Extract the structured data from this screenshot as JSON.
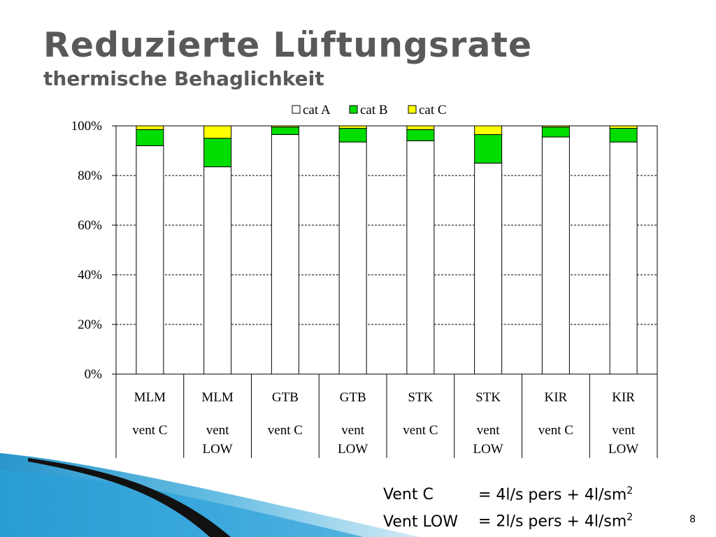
{
  "slide": {
    "title": "Reduzierte Lüftungsrate",
    "subtitle": "thermische Behaglichkeit",
    "page_number": "8"
  },
  "notes": [
    {
      "label": "Vent C",
      "formula": "= 4l/s pers + 4l/sm",
      "sup": "2"
    },
    {
      "label": "Vent LOW",
      "formula": "= 2l/s pers + 4l/sm",
      "sup": "2"
    }
  ],
  "colors": {
    "cat_a": "#ffffff",
    "cat_b": "#00dd00",
    "cat_c": "#ffff00",
    "grid": "#000000",
    "text": "#000000",
    "title": "#595959"
  },
  "chart_data": {
    "type": "bar",
    "stacked": true,
    "normalized": true,
    "categories": [
      [
        "MLM",
        "vent C"
      ],
      [
        "MLM",
        "vent",
        "LOW"
      ],
      [
        "GTB",
        "vent C"
      ],
      [
        "GTB",
        "vent",
        "LOW"
      ],
      [
        "STK",
        "vent C"
      ],
      [
        "STK",
        "vent",
        "LOW"
      ],
      [
        "KIR",
        "vent C"
      ],
      [
        "KIR",
        "vent",
        "LOW"
      ]
    ],
    "series": [
      {
        "name": "cat A",
        "values": [
          92,
          83.5,
          96.5,
          93.5,
          94,
          85,
          95.5,
          93.5
        ]
      },
      {
        "name": "cat B",
        "values": [
          6.5,
          11.5,
          3,
          5.5,
          4.5,
          11.5,
          4,
          5.5
        ]
      },
      {
        "name": "cat C",
        "values": [
          1.5,
          5,
          0.5,
          1,
          1.5,
          3.5,
          0.5,
          1
        ]
      }
    ],
    "ylim": [
      0,
      100
    ],
    "yticks": [
      "0%",
      "20%",
      "40%",
      "60%",
      "80%",
      "100%"
    ],
    "ytick_values": [
      0,
      20,
      40,
      60,
      80,
      100
    ],
    "grid": "horizontal-dashed",
    "legend": "top"
  }
}
